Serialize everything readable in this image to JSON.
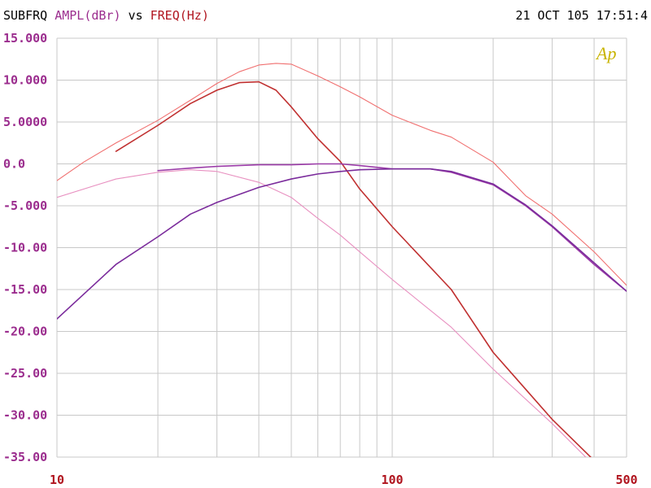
{
  "header": {
    "program": "SUBFRQ",
    "y_quantity": "AMPL(dBr)",
    "vs": "vs",
    "x_quantity": "FREQ(Hz)",
    "timestamp": "21 OCT 105 17:51:4",
    "logo_text": "Ap"
  },
  "colors": {
    "y_axis_text": "#9b2d8e",
    "x_axis_text": "#b0141e",
    "grid": "#c8c8c8",
    "logo": "#c8b400"
  },
  "chart_data": {
    "type": "line",
    "x_scale": "log",
    "xlim": [
      10,
      500
    ],
    "ylim": [
      -35,
      15
    ],
    "grid": true,
    "y_ticks": [
      15,
      10,
      5,
      0,
      -5,
      -10,
      -15,
      -20,
      -25,
      -30,
      -35
    ],
    "y_tick_labels": [
      "15.000",
      "10.000",
      "5.0000",
      "0.0",
      "-5.000",
      "-10.00",
      "-15.00",
      "-20.00",
      "-25.00",
      "-30.00",
      "-35.00"
    ],
    "x_tick_labels": [
      {
        "value": 10,
        "label": "10"
      },
      {
        "value": 100,
        "label": "100"
      },
      {
        "value": 500,
        "label": "500"
      }
    ],
    "x_grid": [
      20,
      30,
      40,
      50,
      60,
      70,
      80,
      90,
      100,
      200,
      300,
      400
    ],
    "series": [
      {
        "color": "#f07070",
        "width": 1.1,
        "points": [
          [
            10,
            -2
          ],
          [
            12,
            0.2
          ],
          [
            15,
            2.5
          ],
          [
            20,
            5.2
          ],
          [
            25,
            7.6
          ],
          [
            30,
            9.6
          ],
          [
            35,
            11
          ],
          [
            40,
            11.8
          ],
          [
            45,
            12
          ],
          [
            50,
            11.9
          ],
          [
            60,
            10.5
          ],
          [
            70,
            9.2
          ],
          [
            80,
            8
          ],
          [
            100,
            5.8
          ],
          [
            130,
            4
          ],
          [
            150,
            3.2
          ],
          [
            200,
            0.2
          ],
          [
            250,
            -3.8
          ],
          [
            300,
            -6
          ],
          [
            400,
            -10.5
          ],
          [
            500,
            -14.5
          ]
        ]
      },
      {
        "color": "#c03030",
        "width": 1.6,
        "points": [
          [
            15,
            1.5
          ],
          [
            20,
            4.6
          ],
          [
            25,
            7.2
          ],
          [
            30,
            8.8
          ],
          [
            35,
            9.7
          ],
          [
            40,
            9.8
          ],
          [
            45,
            8.8
          ],
          [
            50,
            6.8
          ],
          [
            60,
            3
          ],
          [
            70,
            0.3
          ],
          [
            80,
            -3
          ],
          [
            100,
            -7.5
          ],
          [
            150,
            -15
          ],
          [
            200,
            -22.5
          ],
          [
            300,
            -30.5
          ],
          [
            400,
            -35.4
          ]
        ]
      },
      {
        "color": "#e890c0",
        "width": 1.1,
        "points": [
          [
            10,
            -4
          ],
          [
            15,
            -1.8
          ],
          [
            20,
            -1
          ],
          [
            25,
            -0.7
          ],
          [
            30,
            -0.9
          ],
          [
            40,
            -2.2
          ],
          [
            50,
            -4
          ],
          [
            60,
            -6.5
          ],
          [
            70,
            -8.5
          ],
          [
            80,
            -10.5
          ],
          [
            100,
            -13.8
          ],
          [
            150,
            -19.5
          ],
          [
            200,
            -24.5
          ],
          [
            300,
            -31
          ],
          [
            400,
            -36
          ]
        ]
      },
      {
        "color": "#9b3ca8",
        "width": 1.6,
        "points": [
          [
            20,
            -0.8
          ],
          [
            25,
            -0.5
          ],
          [
            30,
            -0.3
          ],
          [
            40,
            -0.1
          ],
          [
            50,
            -0.1
          ],
          [
            60,
            0
          ],
          [
            70,
            0
          ],
          [
            80,
            -0.2
          ],
          [
            100,
            -0.6
          ],
          [
            130,
            -0.6
          ],
          [
            150,
            -1
          ],
          [
            200,
            -2.5
          ],
          [
            250,
            -5
          ],
          [
            300,
            -7.5
          ],
          [
            400,
            -12
          ],
          [
            500,
            -15.2
          ]
        ]
      },
      {
        "color": "#7b2c9c",
        "width": 1.6,
        "points": [
          [
            10,
            -18.5
          ],
          [
            15,
            -12
          ],
          [
            20,
            -8.7
          ],
          [
            25,
            -6
          ],
          [
            30,
            -4.6
          ],
          [
            40,
            -2.8
          ],
          [
            50,
            -1.8
          ],
          [
            60,
            -1.2
          ],
          [
            70,
            -0.9
          ],
          [
            80,
            -0.7
          ],
          [
            100,
            -0.6
          ],
          [
            130,
            -0.6
          ],
          [
            150,
            -0.9
          ],
          [
            200,
            -2.4
          ],
          [
            250,
            -4.9
          ],
          [
            300,
            -7.4
          ],
          [
            400,
            -11.8
          ],
          [
            500,
            -15.2
          ]
        ]
      }
    ]
  }
}
